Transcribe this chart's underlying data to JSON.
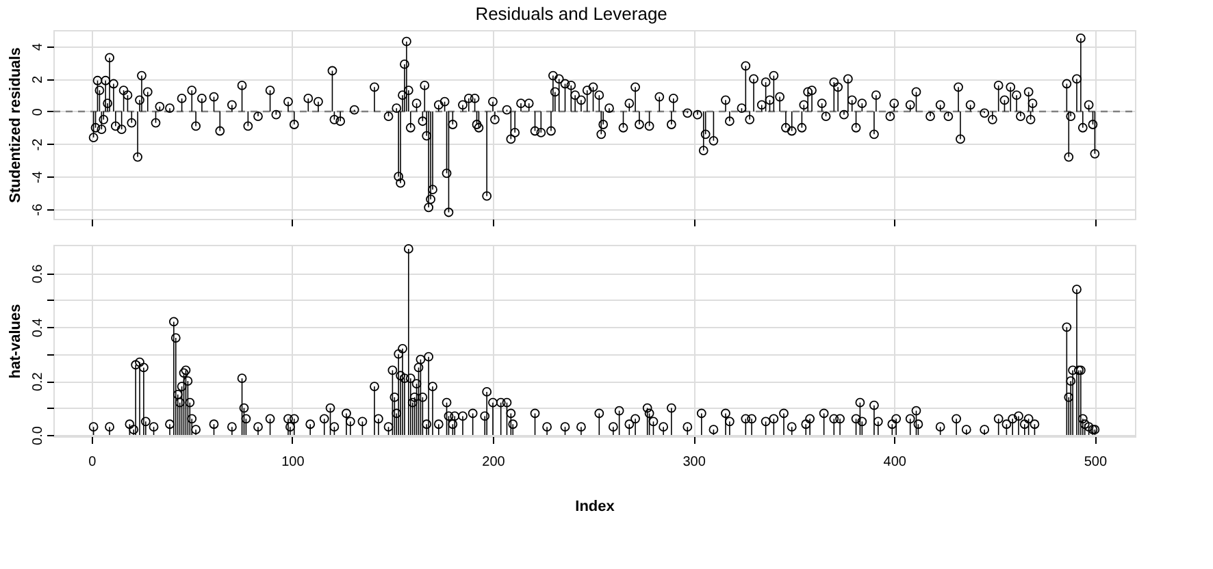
{
  "chart_data": [
    {
      "type": "lollipop",
      "title": "Residuals and Leverage",
      "ylabel": "Studentized residuals",
      "xlim": [
        -19,
        520
      ],
      "xticks": [
        0,
        100,
        200,
        300,
        400,
        500
      ],
      "ylim": [
        -6.6,
        5
      ],
      "yticks": [
        -6,
        -4,
        -2,
        0,
        2,
        4
      ],
      "tick_labels": "y",
      "grid": true,
      "marker": "circle",
      "ref_lines": [
        {
          "axis": "y",
          "value": 0,
          "color": "#808080",
          "line_style": "dashed"
        }
      ],
      "series": [
        {
          "color": "#000000",
          "x": [
            1,
            2,
            3,
            4,
            5,
            6,
            7,
            8,
            9,
            11,
            12,
            15,
            16,
            18,
            20,
            23,
            24,
            25,
            28,
            32,
            34,
            39,
            45,
            50,
            52,
            55,
            61,
            64,
            70,
            75,
            78,
            83,
            89,
            92,
            98,
            101,
            108,
            113,
            120,
            121,
            124,
            131,
            141,
            148,
            152,
            153,
            154,
            155,
            156,
            157,
            158,
            159,
            162,
            165,
            166,
            167,
            168,
            169,
            170,
            173,
            176,
            177,
            178,
            180,
            185,
            188,
            191,
            192,
            193,
            197,
            200,
            201,
            207,
            209,
            211,
            214,
            218,
            221,
            224,
            229,
            230,
            231,
            233,
            236,
            239,
            241,
            244,
            247,
            250,
            253,
            254,
            255,
            258,
            265,
            268,
            271,
            273,
            278,
            283,
            289,
            290,
            297,
            302,
            305,
            306,
            310,
            316,
            318,
            324,
            326,
            328,
            330,
            334,
            336,
            338,
            340,
            343,
            346,
            349,
            354,
            355,
            357,
            359,
            364,
            366,
            370,
            372,
            375,
            377,
            379,
            381,
            384,
            390,
            391,
            398,
            400,
            408,
            411,
            418,
            423,
            427,
            432,
            433,
            438,
            445,
            449,
            452,
            455,
            458,
            461,
            463,
            467,
            468,
            469,
            486,
            487,
            488,
            491,
            493,
            494,
            497,
            499,
            500
          ],
          "values": [
            -1.6,
            -1.0,
            1.9,
            1.3,
            -1.1,
            -0.5,
            1.9,
            0.5,
            3.3,
            1.7,
            -0.9,
            -1.1,
            1.3,
            1.0,
            -0.7,
            -2.8,
            0.7,
            2.2,
            1.2,
            -0.7,
            0.3,
            0.2,
            0.8,
            1.3,
            -0.9,
            0.8,
            0.9,
            -1.2,
            0.4,
            1.6,
            -0.9,
            -0.3,
            1.3,
            -0.2,
            0.6,
            -0.8,
            0.8,
            0.6,
            2.5,
            -0.5,
            -0.6,
            0.1,
            1.5,
            -0.3,
            0.2,
            -4.0,
            -4.4,
            1.0,
            2.9,
            4.3,
            1.3,
            -1.0,
            0.5,
            -0.6,
            1.6,
            -1.5,
            -5.9,
            -5.4,
            -4.8,
            0.4,
            0.6,
            -3.8,
            -6.2,
            -0.8,
            0.4,
            0.8,
            0.8,
            -0.8,
            -1.0,
            -5.2,
            0.6,
            -0.5,
            0.1,
            -1.7,
            -1.3,
            0.5,
            0.5,
            -1.2,
            -1.3,
            -1.2,
            2.2,
            1.2,
            2.0,
            1.7,
            1.6,
            1.0,
            0.7,
            1.3,
            1.5,
            1.0,
            -1.4,
            -0.8,
            0.2,
            -1.0,
            0.5,
            1.5,
            -0.8,
            -0.9,
            0.9,
            -0.8,
            0.8,
            -0.1,
            -0.2,
            -2.4,
            -1.4,
            -1.8,
            0.7,
            -0.6,
            0.2,
            2.8,
            -0.5,
            2.0,
            0.4,
            1.8,
            0.7,
            2.2,
            0.9,
            -1.0,
            -1.2,
            -1.0,
            0.4,
            1.2,
            1.3,
            0.5,
            -0.3,
            1.8,
            1.5,
            -0.2,
            2.0,
            0.7,
            -1.0,
            0.5,
            -1.4,
            1.0,
            -0.3,
            0.5,
            0.4,
            1.2,
            -0.3,
            0.4,
            -0.3,
            1.5,
            -1.7,
            0.4,
            -0.1,
            -0.5,
            1.6,
            0.7,
            1.5,
            1.0,
            -0.3,
            1.2,
            -0.5,
            0.5,
            1.7,
            -2.8,
            -0.3,
            2.0,
            4.5,
            -1.0,
            0.4,
            -0.8,
            -2.6
          ]
        }
      ]
    },
    {
      "type": "lollipop",
      "xlabel": "Index",
      "ylabel": "hat-values",
      "xlim": [
        -19,
        520
      ],
      "xticks": [
        0,
        100,
        200,
        300,
        400,
        500
      ],
      "ylim": [
        -0.005,
        0.705
      ],
      "yticks": [
        {
          "value": 0,
          "label": "0.0"
        },
        {
          "value": 0.1,
          "label": null
        },
        0.2,
        {
          "value": 0.3,
          "label": null
        },
        0.4,
        {
          "value": 0.5,
          "label": null
        },
        0.6
      ],
      "grid": true,
      "marker": "circle",
      "series": [
        {
          "color": "#000000",
          "x": [
            1,
            9,
            19,
            21,
            22,
            24,
            26,
            27,
            31,
            39,
            41,
            42,
            43,
            44,
            45,
            46,
            47,
            48,
            49,
            50,
            52,
            61,
            70,
            75,
            76,
            77,
            83,
            89,
            98,
            99,
            101,
            109,
            116,
            119,
            121,
            127,
            129,
            135,
            141,
            143,
            148,
            150,
            151,
            152,
            153,
            154,
            155,
            156,
            158,
            159,
            160,
            161,
            162,
            163,
            164,
            165,
            167,
            168,
            170,
            173,
            177,
            178,
            180,
            181,
            185,
            190,
            196,
            197,
            200,
            204,
            207,
            209,
            210,
            221,
            227,
            236,
            244,
            253,
            260,
            263,
            268,
            271,
            277,
            278,
            280,
            285,
            289,
            297,
            304,
            310,
            316,
            318,
            326,
            329,
            336,
            340,
            345,
            349,
            356,
            358,
            365,
            370,
            373,
            381,
            383,
            384,
            390,
            392,
            399,
            401,
            408,
            411,
            412,
            423,
            431,
            436,
            445,
            452,
            456,
            459,
            462,
            465,
            467,
            470,
            486,
            487,
            488,
            489,
            491,
            492,
            493,
            494,
            495,
            497,
            499,
            500
          ],
          "values": [
            0.03,
            0.03,
            0.04,
            0.02,
            0.26,
            0.27,
            0.25,
            0.05,
            0.03,
            0.04,
            0.42,
            0.36,
            0.15,
            0.12,
            0.18,
            0.23,
            0.24,
            0.2,
            0.12,
            0.06,
            0.02,
            0.04,
            0.03,
            0.21,
            0.1,
            0.06,
            0.03,
            0.06,
            0.06,
            0.03,
            0.06,
            0.04,
            0.06,
            0.1,
            0.03,
            0.08,
            0.05,
            0.05,
            0.18,
            0.06,
            0.03,
            0.24,
            0.14,
            0.08,
            0.3,
            0.22,
            0.32,
            0.21,
            0.69,
            0.21,
            0.12,
            0.14,
            0.19,
            0.25,
            0.28,
            0.14,
            0.04,
            0.29,
            0.18,
            0.04,
            0.12,
            0.07,
            0.04,
            0.07,
            0.07,
            0.08,
            0.07,
            0.16,
            0.12,
            0.12,
            0.12,
            0.08,
            0.04,
            0.08,
            0.03,
            0.03,
            0.03,
            0.08,
            0.03,
            0.09,
            0.04,
            0.06,
            0.1,
            0.08,
            0.05,
            0.03,
            0.1,
            0.03,
            0.08,
            0.02,
            0.08,
            0.05,
            0.06,
            0.06,
            0.05,
            0.06,
            0.08,
            0.03,
            0.04,
            0.06,
            0.08,
            0.06,
            0.06,
            0.06,
            0.12,
            0.05,
            0.11,
            0.05,
            0.04,
            0.06,
            0.06,
            0.09,
            0.04,
            0.03,
            0.06,
            0.02,
            0.02,
            0.06,
            0.04,
            0.06,
            0.07,
            0.04,
            0.06,
            0.04,
            0.4,
            0.14,
            0.2,
            0.24,
            0.54,
            0.24,
            0.24,
            0.06,
            0.04,
            0.03,
            0.02,
            0.02
          ]
        }
      ]
    }
  ]
}
